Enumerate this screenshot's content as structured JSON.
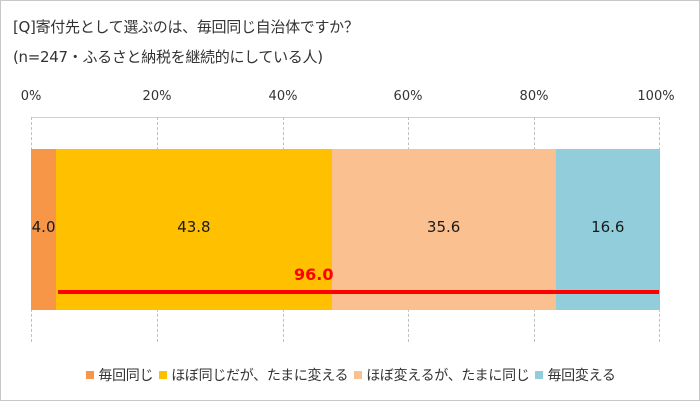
{
  "title": {
    "line1": "[Q]寄付先として選ぶのは、毎回同じ自治体ですか？",
    "line2": "(n=247・ふるさと納税を継続的にしている人)"
  },
  "axis": {
    "ticks": [
      "0%",
      "20%",
      "40%",
      "60%",
      "80%",
      "100%"
    ]
  },
  "series": [
    {
      "name": "毎回同じ",
      "value": "4.0",
      "color": "#F79646"
    },
    {
      "name": "ほぼ同じだが、たまに変える",
      "value": "43.8",
      "color": "#FFC000"
    },
    {
      "name": "ほぼ変えるが、たまに同じ",
      "value": "35.6",
      "color": "#FAC090"
    },
    {
      "name": "毎回変える",
      "value": "16.6",
      "color": "#92CDDC"
    }
  ],
  "annotation": {
    "label": "96.0",
    "color": "#FF0000"
  },
  "chart_data": {
    "type": "bar",
    "orientation": "horizontal",
    "stacked": "100%",
    "title": "[Q]寄付先として選ぶのは、毎回同じ自治体ですか？ (n=247・ふるさと納税を継続的にしている人)",
    "categories": [
      ""
    ],
    "series": [
      {
        "name": "毎回同じ",
        "values": [
          4.0
        ]
      },
      {
        "name": "ほぼ同じだが、たまに変える",
        "values": [
          43.8
        ]
      },
      {
        "name": "ほぼ変えるが、たまに同じ",
        "values": [
          35.6
        ]
      },
      {
        "name": "毎回変える",
        "values": [
          16.6
        ]
      }
    ],
    "annotations": [
      {
        "text": "96.0",
        "type": "bracket-line",
        "spans_series": [
          "ほぼ同じだが、たまに変える",
          "ほぼ変えるが、たまに同じ",
          "毎回変える"
        ],
        "color": "#FF0000"
      }
    ],
    "xlabel": "",
    "ylabel": "",
    "xlim": [
      0,
      100
    ],
    "xticks": [
      "0%",
      "20%",
      "40%",
      "60%",
      "80%",
      "100%"
    ],
    "xaxis_position": "top",
    "grid": true,
    "legend_position": "bottom"
  }
}
